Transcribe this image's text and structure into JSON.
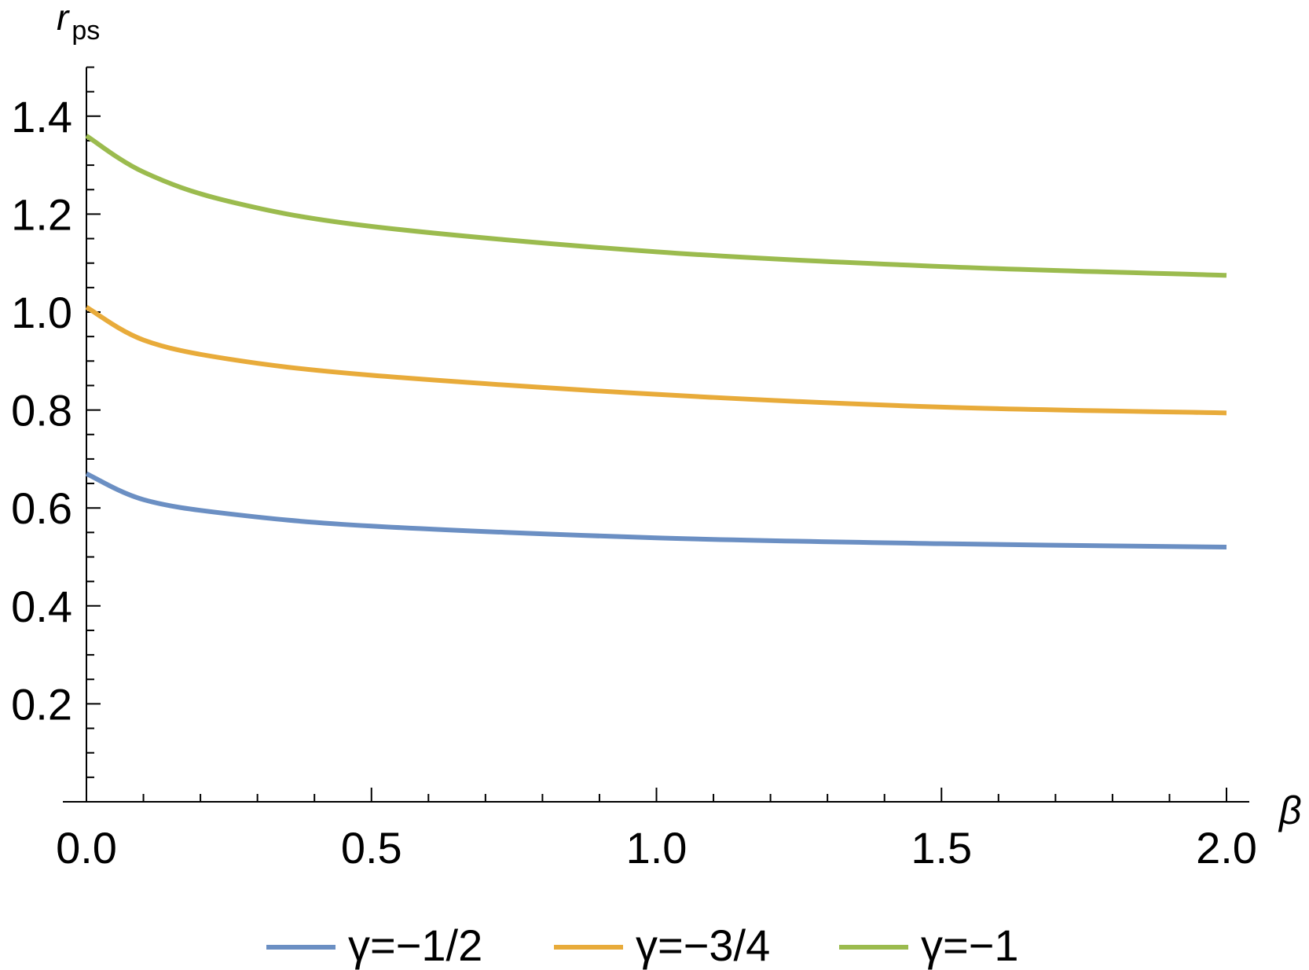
{
  "chart_data": {
    "type": "line",
    "title": "",
    "xlabel": "β",
    "ylabel_main": "r",
    "ylabel_sub": "ps",
    "xlim": [
      0,
      2.0
    ],
    "ylim": [
      0,
      1.5
    ],
    "xticks": [
      "0.0",
      "0.5",
      "1.0",
      "1.5",
      "2.0"
    ],
    "yticks": [
      "0.2",
      "0.4",
      "0.6",
      "0.8",
      "1.0",
      "1.2",
      "1.4"
    ],
    "grid": false,
    "legend_position": "bottom",
    "x": [
      0,
      0.1,
      0.25,
      0.5,
      1.0,
      1.5,
      2.0
    ],
    "series": [
      {
        "name": "γ=−1/2",
        "color": "#6b8fc3",
        "values": [
          0.67,
          0.617,
          0.588,
          0.563,
          0.539,
          0.527,
          0.52
        ]
      },
      {
        "name": "γ=−3/4",
        "color": "#e8ab3a",
        "values": [
          1.01,
          0.943,
          0.904,
          0.871,
          0.832,
          0.806,
          0.794
        ]
      },
      {
        "name": "γ=−1",
        "color": "#9bbb4e",
        "values": [
          1.36,
          1.286,
          1.226,
          1.175,
          1.123,
          1.093,
          1.075
        ]
      }
    ]
  }
}
